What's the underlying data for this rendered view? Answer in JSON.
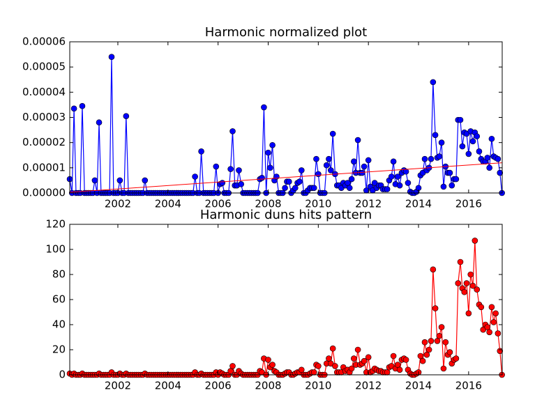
{
  "chart_data": [
    {
      "type": "line",
      "title": "Harmonic normalized plot",
      "color": "#0000ff",
      "x": [
        2000.08,
        2000.17,
        2000.25,
        2000.33,
        2000.42,
        2000.5,
        2000.58,
        2000.67,
        2000.75,
        2000.83,
        2000.92,
        2001,
        2001.08,
        2001.17,
        2001.25,
        2001.33,
        2001.42,
        2001.5,
        2001.58,
        2001.67,
        2001.75,
        2001.83,
        2001.92,
        2002,
        2002.08,
        2002.17,
        2002.25,
        2002.33,
        2002.42,
        2002.5,
        2002.58,
        2002.67,
        2002.75,
        2002.83,
        2002.92,
        2003,
        2003.08,
        2003.17,
        2003.25,
        2003.33,
        2003.42,
        2003.5,
        2003.58,
        2003.67,
        2003.75,
        2003.83,
        2003.92,
        2004,
        2004.08,
        2004.17,
        2004.25,
        2004.33,
        2004.42,
        2004.5,
        2004.58,
        2004.67,
        2004.75,
        2004.83,
        2004.92,
        2005,
        2005.08,
        2005.17,
        2005.25,
        2005.33,
        2005.42,
        2005.5,
        2005.58,
        2005.67,
        2005.75,
        2005.83,
        2005.92,
        2006,
        2006.08,
        2006.17,
        2006.25,
        2006.33,
        2006.42,
        2006.5,
        2006.58,
        2006.67,
        2006.75,
        2006.83,
        2006.92,
        2007,
        2007.08,
        2007.17,
        2007.25,
        2007.33,
        2007.42,
        2007.5,
        2007.58,
        2007.67,
        2007.75,
        2007.83,
        2007.92,
        2008,
        2008.08,
        2008.17,
        2008.25,
        2008.33,
        2008.42,
        2008.5,
        2008.58,
        2008.67,
        2008.75,
        2008.83,
        2008.92,
        2009,
        2009.08,
        2009.17,
        2009.25,
        2009.33,
        2009.42,
        2009.5,
        2009.58,
        2009.67,
        2009.75,
        2009.83,
        2009.92,
        2010,
        2010.08,
        2010.17,
        2010.25,
        2010.33,
        2010.42,
        2010.5,
        2010.58,
        2010.67,
        2010.75,
        2010.83,
        2010.92,
        2011,
        2011.08,
        2011.17,
        2011.25,
        2011.33,
        2011.42,
        2011.5,
        2011.58,
        2011.67,
        2011.75,
        2011.83,
        2011.92,
        2012,
        2012.08,
        2012.17,
        2012.25,
        2012.33,
        2012.42,
        2012.5,
        2012.58,
        2012.67,
        2012.75,
        2012.83,
        2012.92,
        2013,
        2013.08,
        2013.17,
        2013.25,
        2013.33,
        2013.42,
        2013.5,
        2013.58,
        2013.67,
        2013.75,
        2013.83,
        2013.92,
        2014,
        2014.08,
        2014.17,
        2014.25,
        2014.33,
        2014.42,
        2014.5,
        2014.58,
        2014.67,
        2014.75,
        2014.83,
        2014.92,
        2015,
        2015.08,
        2015.17,
        2015.25,
        2015.33,
        2015.42,
        2015.5,
        2015.58,
        2015.67,
        2015.75,
        2015.83,
        2015.92,
        2016,
        2016.08,
        2016.17,
        2016.25,
        2016.33,
        2016.42,
        2016.5,
        2016.58,
        2016.67,
        2016.75,
        2016.83,
        2016.92,
        2017,
        2017.08,
        2017.17,
        2017.25,
        2017.33
      ],
      "values": [
        5.5e-06,
        0,
        3.35e-05,
        0,
        0,
        0,
        3.45e-05,
        0,
        0,
        0,
        0,
        0,
        5e-06,
        0,
        2.8e-05,
        0,
        0,
        0,
        0,
        0,
        5.4e-05,
        0,
        0,
        0,
        5e-06,
        0,
        0,
        3.05e-05,
        0,
        0,
        0,
        0,
        0,
        0,
        0,
        0,
        5e-06,
        0,
        0,
        0,
        0,
        0,
        0,
        0,
        0,
        0,
        0,
        0,
        0,
        0,
        0,
        0,
        0,
        0,
        0,
        0,
        0,
        0,
        0,
        0,
        6.5e-06,
        0,
        0,
        1.65e-05,
        0,
        0,
        0,
        0,
        0,
        0,
        1.05e-05,
        0,
        3.5e-06,
        4e-06,
        0,
        0,
        0,
        9.5e-06,
        2.45e-05,
        3e-06,
        3e-06,
        9e-06,
        3.5e-06,
        0,
        0,
        0,
        0,
        0,
        0,
        0,
        0,
        5.5e-06,
        6e-06,
        3.4e-05,
        0,
        1.6e-05,
        1e-05,
        1.9e-05,
        5e-06,
        6.5e-06,
        0,
        0,
        0,
        2e-06,
        4.5e-06,
        4.5e-06,
        0,
        1e-06,
        2e-06,
        4e-06,
        4.5e-06,
        9e-06,
        0,
        0,
        1e-06,
        2e-06,
        2e-06,
        2e-06,
        1.35e-05,
        7.5e-06,
        0,
        0,
        0,
        1.1e-05,
        1.35e-05,
        9e-06,
        2.35e-05,
        7.5e-06,
        3e-06,
        3e-06,
        2e-06,
        4e-06,
        3e-06,
        4e-06,
        2e-06,
        5.5e-06,
        1.25e-05,
        8e-06,
        2.1e-05,
        8e-06,
        8e-06,
        1.05e-05,
        1e-06,
        1.3e-05,
        2.5e-06,
        1e-06,
        4e-06,
        2e-06,
        3e-06,
        3e-06,
        1.5e-06,
        1.5e-06,
        1.5e-06,
        5e-06,
        6.5e-06,
        1.25e-05,
        3.5e-06,
        6.5e-06,
        3e-06,
        8e-06,
        9e-06,
        8.5e-06,
        4e-06,
        5e-07,
        0,
        0,
        5e-07,
        2e-06,
        7e-06,
        8e-06,
        1.35e-05,
        9e-06,
        1e-05,
        1.35e-05,
        4.4e-05,
        2.3e-05,
        1.4e-05,
        1.45e-05,
        2e-05,
        2.5e-06,
        1.05e-05,
        8e-06,
        8e-06,
        3e-06,
        5.5e-06,
        5.5e-06,
        2.9e-05,
        2.9e-05,
        1.85e-05,
        2.4e-05,
        2.35e-05,
        1.55e-05,
        2.45e-05,
        2.05e-05,
        2.4e-05,
        2.25e-05,
        1.65e-05,
        1.35e-05,
        1.25e-05,
        1.25e-05,
        1.4e-05,
        1e-05,
        2.15e-05,
        1.45e-05,
        1.4e-05,
        1.35e-05,
        8e-06,
        0
      ],
      "trend": {
        "x": [
          2000.08,
          2017.34
        ],
        "values": [
          3e-07,
          1.2e-05
        ],
        "color": "#ff0000"
      },
      "xlim": [
        2000.08,
        2017.34
      ],
      "xticks": [
        2002,
        2004,
        2006,
        2008,
        2010,
        2012,
        2014,
        2016
      ],
      "ylim": [
        0,
        6e-05
      ],
      "yticks": [
        {
          "value": 0,
          "label": "0.00000"
        },
        {
          "value": 1e-05,
          "label": "0.00001"
        },
        {
          "value": 2e-05,
          "label": "0.00002"
        },
        {
          "value": 3e-05,
          "label": "0.00003"
        },
        {
          "value": 4e-05,
          "label": "0.00004"
        },
        {
          "value": 5e-05,
          "label": "0.00005"
        },
        {
          "value": 6e-05,
          "label": "0.00006"
        }
      ]
    },
    {
      "type": "line",
      "title": "Harmonic duns hits pattern",
      "color": "#ff0000",
      "x": [
        2000.08,
        2000.17,
        2000.25,
        2000.33,
        2000.42,
        2000.5,
        2000.58,
        2000.67,
        2000.75,
        2000.83,
        2000.92,
        2001,
        2001.08,
        2001.17,
        2001.25,
        2001.33,
        2001.42,
        2001.5,
        2001.58,
        2001.67,
        2001.75,
        2001.83,
        2001.92,
        2002,
        2002.08,
        2002.17,
        2002.25,
        2002.33,
        2002.42,
        2002.5,
        2002.58,
        2002.67,
        2002.75,
        2002.83,
        2002.92,
        2003,
        2003.08,
        2003.17,
        2003.25,
        2003.33,
        2003.42,
        2003.5,
        2003.58,
        2003.67,
        2003.75,
        2003.83,
        2003.92,
        2004,
        2004.08,
        2004.17,
        2004.25,
        2004.33,
        2004.42,
        2004.5,
        2004.58,
        2004.67,
        2004.75,
        2004.83,
        2004.92,
        2005,
        2005.08,
        2005.17,
        2005.25,
        2005.33,
        2005.42,
        2005.5,
        2005.58,
        2005.67,
        2005.75,
        2005.83,
        2005.92,
        2006,
        2006.08,
        2006.17,
        2006.25,
        2006.33,
        2006.42,
        2006.5,
        2006.58,
        2006.67,
        2006.75,
        2006.83,
        2006.92,
        2007,
        2007.08,
        2007.17,
        2007.25,
        2007.33,
        2007.42,
        2007.5,
        2007.58,
        2007.67,
        2007.75,
        2007.83,
        2007.92,
        2008,
        2008.08,
        2008.17,
        2008.25,
        2008.33,
        2008.42,
        2008.5,
        2008.58,
        2008.67,
        2008.75,
        2008.83,
        2008.92,
        2009,
        2009.08,
        2009.17,
        2009.25,
        2009.33,
        2009.42,
        2009.5,
        2009.58,
        2009.67,
        2009.75,
        2009.83,
        2009.92,
        2010,
        2010.08,
        2010.17,
        2010.25,
        2010.33,
        2010.42,
        2010.5,
        2010.58,
        2010.67,
        2010.75,
        2010.83,
        2010.92,
        2011,
        2011.08,
        2011.17,
        2011.25,
        2011.33,
        2011.42,
        2011.5,
        2011.58,
        2011.67,
        2011.75,
        2011.83,
        2011.92,
        2012,
        2012.08,
        2012.17,
        2012.25,
        2012.33,
        2012.42,
        2012.5,
        2012.58,
        2012.67,
        2012.75,
        2012.83,
        2012.92,
        2013,
        2013.08,
        2013.17,
        2013.25,
        2013.33,
        2013.42,
        2013.5,
        2013.58,
        2013.67,
        2013.75,
        2013.83,
        2013.92,
        2014,
        2014.08,
        2014.17,
        2014.25,
        2014.33,
        2014.42,
        2014.5,
        2014.58,
        2014.67,
        2014.75,
        2014.83,
        2014.92,
        2015,
        2015.08,
        2015.17,
        2015.25,
        2015.33,
        2015.42,
        2015.5,
        2015.58,
        2015.67,
        2015.75,
        2015.83,
        2015.92,
        2016,
        2016.08,
        2016.17,
        2016.25,
        2016.33,
        2016.42,
        2016.5,
        2016.58,
        2016.67,
        2016.75,
        2016.83,
        2016.92,
        2017,
        2017.08,
        2017.17,
        2017.25,
        2017.33
      ],
      "values": [
        1,
        0,
        1,
        0,
        0,
        0,
        1,
        0,
        0,
        0,
        0,
        0,
        0,
        0,
        1,
        0,
        0,
        0,
        0,
        0,
        2,
        0,
        0,
        0,
        1,
        0,
        0,
        1,
        0,
        0,
        0,
        0,
        0,
        0,
        0,
        0,
        1,
        0,
        0,
        0,
        0,
        0,
        0,
        0,
        0,
        0,
        0,
        0,
        0,
        0,
        0,
        0,
        0,
        0,
        0,
        0,
        0,
        0,
        0,
        0,
        2,
        0,
        0,
        1,
        0,
        0,
        0,
        0,
        0,
        0,
        2,
        0,
        2,
        1,
        0,
        0,
        0,
        3,
        7,
        0,
        0,
        3,
        1,
        0,
        0,
        0,
        0,
        0,
        0,
        0,
        0,
        3,
        2,
        13,
        0,
        12,
        6,
        8,
        3,
        2,
        0,
        0,
        0,
        1,
        2,
        2,
        0,
        0,
        1,
        2,
        2,
        4,
        0,
        0,
        0,
        1,
        2,
        2,
        8,
        7,
        0,
        0,
        0,
        9,
        13,
        9,
        21,
        7,
        2,
        2,
        2,
        6,
        3,
        4,
        2,
        5,
        13,
        8,
        20,
        8,
        9,
        11,
        2,
        14,
        2,
        3,
        5,
        4,
        3,
        3,
        2,
        2,
        2,
        6,
        7,
        15,
        5,
        8,
        4,
        12,
        13,
        12,
        4,
        1,
        0,
        0,
        1,
        2,
        15,
        11,
        26,
        16,
        20,
        27,
        84,
        53,
        27,
        31,
        38,
        5,
        26,
        16,
        18,
        9,
        12,
        13,
        73,
        90,
        69,
        66,
        73,
        49,
        80,
        71,
        107,
        68,
        56,
        54,
        36,
        40,
        38,
        34,
        54,
        42,
        49,
        33,
        19,
        0
      ],
      "xlim": [
        2000.08,
        2017.34
      ],
      "xticks": [
        2002,
        2004,
        2006,
        2008,
        2010,
        2012,
        2014,
        2016
      ],
      "ylim": [
        0,
        120
      ],
      "yticks": [
        0,
        20,
        40,
        60,
        80,
        100,
        120
      ]
    }
  ]
}
